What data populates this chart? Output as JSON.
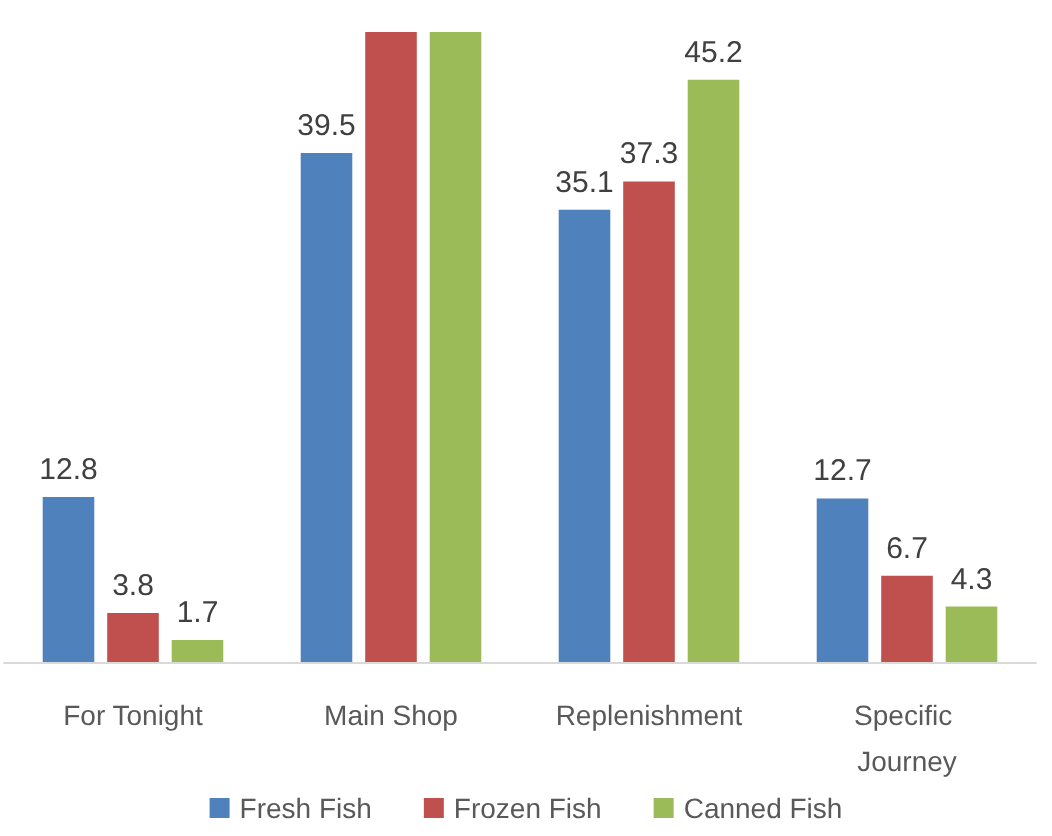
{
  "chart_data": {
    "type": "bar",
    "categories": [
      "For Tonight",
      "Main Shop",
      "Replenishment",
      "Specific Journey"
    ],
    "series": [
      {
        "name": "Fresh Fish",
        "color": "#4f81bd",
        "values": [
          12.8,
          39.5,
          35.1,
          12.7
        ],
        "value_labels": [
          "12.8",
          "39.5",
          "35.1",
          "12.7"
        ]
      },
      {
        "name": "Frozen Fish",
        "color": "#c0504d",
        "values": [
          3.8,
          48.9,
          37.3,
          6.7
        ],
        "value_labels": [
          "3.8",
          null,
          "37.3",
          "6.7"
        ]
      },
      {
        "name": "Canned Fish",
        "color": "#9bbb59",
        "values": [
          1.7,
          48.9,
          45.2,
          4.3
        ],
        "value_labels": [
          "1.7",
          null,
          "45.2",
          "4.3"
        ]
      }
    ],
    "legend": "bottom"
  }
}
